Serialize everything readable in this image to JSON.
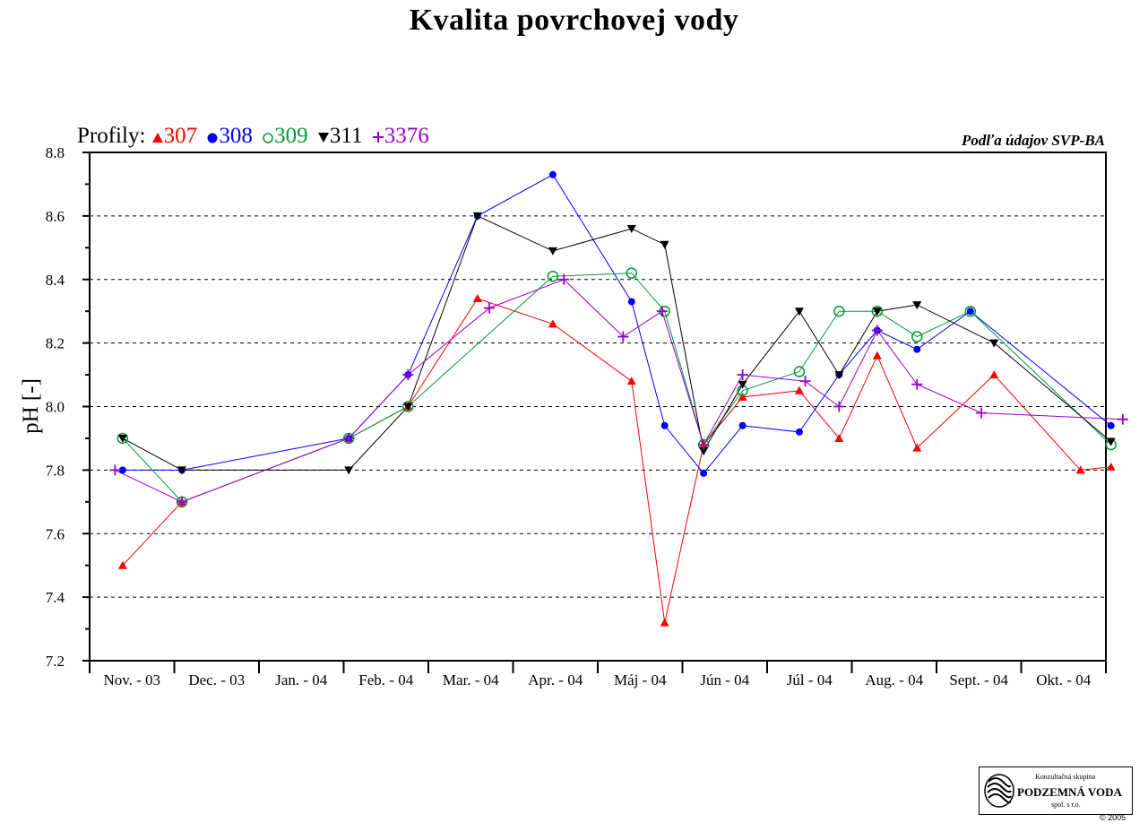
{
  "title": "Kvalita povrchovej vody",
  "legend": {
    "prefix": "Profily:",
    "items": [
      {
        "marker": "filled-triangle-up",
        "label": "307",
        "color": "#ff0000"
      },
      {
        "marker": "filled-circle",
        "label": "308",
        "color": "#0000ff"
      },
      {
        "marker": "open-circle",
        "label": "309",
        "color": "#009933"
      },
      {
        "marker": "filled-triangle-down",
        "label": "311",
        "color": "#000000"
      },
      {
        "marker": "plus",
        "label": "3376",
        "color": "#9900cc"
      }
    ]
  },
  "source": "Podľa údajov SVP-BA",
  "logo": {
    "line1": "Konzultačná skupina",
    "line2": "PODZEMNÁ VODA",
    "line3": "spol. s r.o."
  },
  "copyright": "© 2005",
  "chart_data": {
    "type": "line",
    "title": "Kvalita povrchovej vody",
    "xlabel": "",
    "ylabel": "pH [-]",
    "ylim": [
      7.2,
      8.8
    ],
    "yticks": [
      "7.2",
      "7.4",
      "7.6",
      "7.8",
      "8.0",
      "8.2",
      "8.4",
      "8.6",
      "8.8"
    ],
    "grid": "horizontal dashed",
    "legend_position": "top-left",
    "categories": [
      "Nov. - 03",
      "Dec. - 03",
      "Jan. - 04",
      "Feb. - 04",
      "Mar. - 04",
      "Apr. - 04",
      "Máj - 04",
      "Jún - 04",
      "Júl - 04",
      "Aug. - 04",
      "Sept. - 04",
      "Okt. - 04"
    ],
    "series": [
      {
        "name": "307",
        "color": "#ff0000",
        "marker": "filled-triangle-up",
        "points": [
          [
            0.39,
            7.5
          ],
          [
            1.09,
            7.7
          ],
          [
            3.06,
            7.9
          ],
          [
            3.76,
            8.0
          ],
          [
            4.58,
            8.34
          ],
          [
            5.47,
            8.26
          ],
          [
            6.4,
            8.08
          ],
          [
            6.79,
            7.32
          ],
          [
            7.25,
            7.88
          ],
          [
            7.71,
            8.03
          ],
          [
            8.38,
            8.05
          ],
          [
            8.85,
            7.9
          ],
          [
            9.3,
            8.16
          ],
          [
            9.77,
            7.87
          ],
          [
            10.68,
            8.1
          ],
          [
            11.7,
            7.8
          ],
          [
            12.06,
            7.81
          ]
        ]
      },
      {
        "name": "308",
        "color": "#0000ff",
        "marker": "filled-circle",
        "points": [
          [
            0.39,
            7.8
          ],
          [
            1.09,
            7.8
          ],
          [
            3.06,
            7.9
          ],
          [
            3.76,
            8.1
          ],
          [
            4.58,
            8.6
          ],
          [
            5.47,
            8.73
          ],
          [
            6.4,
            8.33
          ],
          [
            6.79,
            7.94
          ],
          [
            7.25,
            7.79
          ],
          [
            7.71,
            7.94
          ],
          [
            8.38,
            7.92
          ],
          [
            8.85,
            8.1
          ],
          [
            9.3,
            8.24
          ],
          [
            9.77,
            8.18
          ],
          [
            10.4,
            8.3
          ],
          [
            12.06,
            7.94
          ]
        ]
      },
      {
        "name": "309",
        "color": "#009933",
        "marker": "open-circle",
        "points": [
          [
            0.39,
            7.9
          ],
          [
            1.09,
            7.7
          ],
          [
            3.06,
            7.9
          ],
          [
            3.76,
            8.0
          ],
          [
            5.47,
            8.41
          ],
          [
            6.4,
            8.42
          ],
          [
            6.79,
            8.3
          ],
          [
            7.25,
            7.88
          ],
          [
            7.71,
            8.05
          ],
          [
            8.38,
            8.11
          ],
          [
            8.85,
            8.3
          ],
          [
            9.3,
            8.3
          ],
          [
            9.77,
            8.22
          ],
          [
            10.4,
            8.3
          ],
          [
            12.06,
            7.88
          ]
        ]
      },
      {
        "name": "311",
        "color": "#000000",
        "marker": "filled-triangle-down",
        "points": [
          [
            0.39,
            7.9
          ],
          [
            1.09,
            7.8
          ],
          [
            3.06,
            7.8
          ],
          [
            3.76,
            8.0
          ],
          [
            4.58,
            8.6
          ],
          [
            5.47,
            8.49
          ],
          [
            6.4,
            8.56
          ],
          [
            6.79,
            8.51
          ],
          [
            7.25,
            7.86
          ],
          [
            7.71,
            8.07
          ],
          [
            8.38,
            8.3
          ],
          [
            8.85,
            8.1
          ],
          [
            9.3,
            8.3
          ],
          [
            9.77,
            8.32
          ],
          [
            10.68,
            8.2
          ],
          [
            12.06,
            7.89
          ]
        ]
      },
      {
        "name": "3376",
        "color": "#9900cc",
        "marker": "plus",
        "points": [
          [
            0.3,
            7.8
          ],
          [
            1.09,
            7.7
          ],
          [
            3.06,
            7.9
          ],
          [
            3.76,
            8.1
          ],
          [
            4.72,
            8.31
          ],
          [
            5.6,
            8.4
          ],
          [
            6.3,
            8.22
          ],
          [
            6.76,
            8.3
          ],
          [
            7.25,
            7.88
          ],
          [
            7.71,
            8.1
          ],
          [
            8.45,
            8.08
          ],
          [
            8.85,
            8.0
          ],
          [
            9.3,
            8.24
          ],
          [
            9.77,
            8.07
          ],
          [
            10.53,
            7.98
          ],
          [
            12.2,
            7.96
          ]
        ]
      }
    ]
  }
}
